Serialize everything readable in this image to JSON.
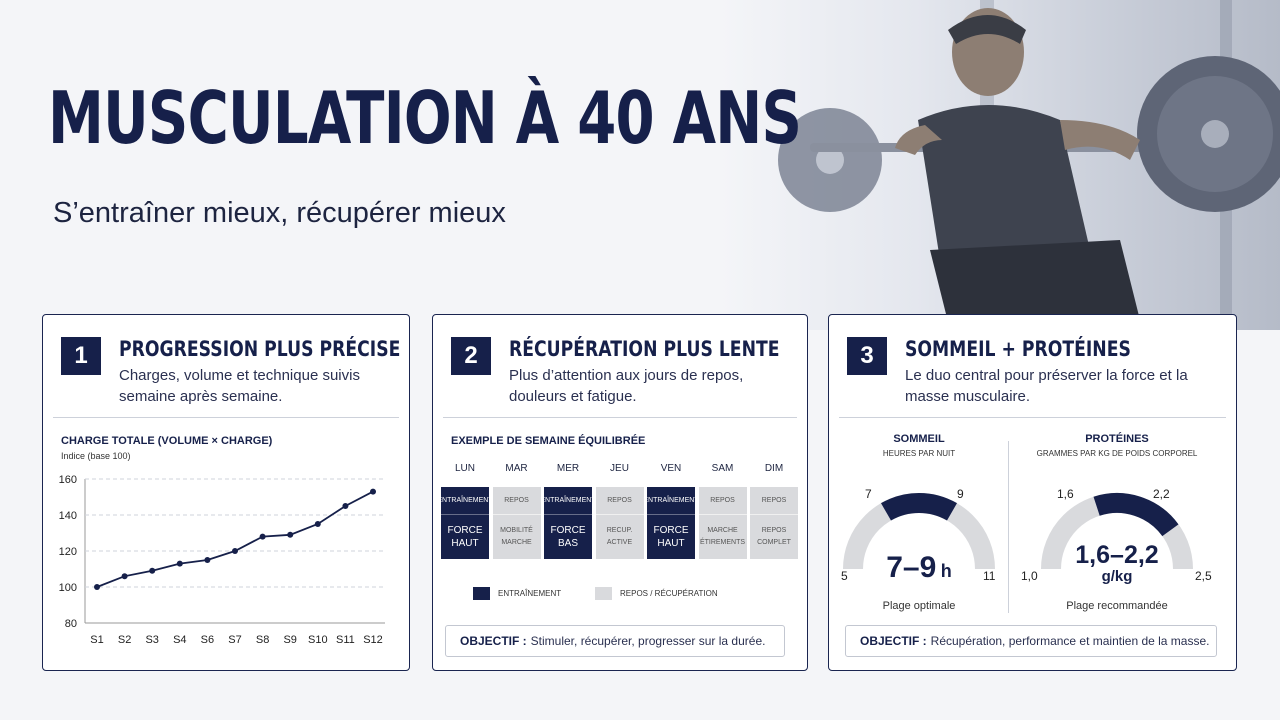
{
  "header": {
    "title": "MUSCULATION À 40 ANS",
    "subtitle": "S’entraîner mieux, récupérer mieux"
  },
  "colors": {
    "navy": "#16204a",
    "rest_grey": "#d9dadd",
    "background": "#f4f5f8"
  },
  "cards": [
    {
      "number": "1",
      "title": "PROGRESSION PLUS PRÉCISE",
      "description": "Charges, volume et technique suivis semaine après semaine.",
      "chart_title": "CHARGE TOTALE (VOLUME × CHARGE)",
      "chart_subtitle": "Indice (base 100)"
    },
    {
      "number": "2",
      "title": "RÉCUPÉRATION PLUS LENTE",
      "description": "Plus d’attention aux jours de repos, douleurs et fatigue.",
      "week_title": "EXEMPLE DE SEMAINE ÉQUILIBRÉE",
      "days": [
        {
          "day": "LUN",
          "top": "ENTRAÎNEMENT",
          "bottom": "FORCE HAUT",
          "type": "train"
        },
        {
          "day": "MAR",
          "top": "REPOS",
          "bottom": "MOBILITÉ MARCHE",
          "type": "rest"
        },
        {
          "day": "MER",
          "top": "ENTRAÎNEMENT",
          "bottom": "FORCE BAS",
          "type": "train"
        },
        {
          "day": "JEU",
          "top": "REPOS",
          "bottom": "RECUP. ACTIVE",
          "type": "rest"
        },
        {
          "day": "VEN",
          "top": "ENTRAÎNEMENT",
          "bottom": "FORCE HAUT",
          "type": "train"
        },
        {
          "day": "SAM",
          "top": "REPOS",
          "bottom": "MARCHE ÉTIREMENTS",
          "type": "rest"
        },
        {
          "day": "DIM",
          "top": "REPOS",
          "bottom": "REPOS COMPLET",
          "type": "rest"
        }
      ],
      "legend_train": "ENTRAÎNEMENT",
      "legend_rest": "REPOS / RÉCUPÉRATION",
      "objective_label": "OBJECTIF :",
      "objective_text": "Stimuler, récupérer, progresser sur la durée."
    },
    {
      "number": "3",
      "title": "SOMMEIL + PROTÉINES",
      "description": "Le duo central pour préserver la force et la masse musculaire.",
      "sleep": {
        "title": "SOMMEIL",
        "subtitle": "HEURES PAR NUIT",
        "min": "5",
        "max": "11",
        "low": "7",
        "high": "9",
        "value": "7–9",
        "unit": "h",
        "caption": "Plage optimale",
        "range_min": 5,
        "range_max": 11,
        "band_low": 7,
        "band_high": 9
      },
      "protein": {
        "title": "PROTÉINES",
        "subtitle": "GRAMMES PAR KG DE POIDS CORPOREL",
        "min": "1,0",
        "max": "2,5",
        "low": "1,6",
        "high": "2,2",
        "value": "1,6–2,2",
        "unit": "g/kg",
        "caption": "Plage recommandée",
        "range_min": 1.0,
        "range_max": 2.5,
        "band_low": 1.6,
        "band_high": 2.2
      },
      "objective_label": "OBJECTIF :",
      "objective_text": "Récupération, performance et maintien de la masse."
    }
  ],
  "chart_data": {
    "type": "line",
    "title": "CHARGE TOTALE (VOLUME × CHARGE)",
    "subtitle": "Indice (base 100)",
    "categories": [
      "S1",
      "S2",
      "S3",
      "S4",
      "S6",
      "S7",
      "S8",
      "S9",
      "S10",
      "S11",
      "S12"
    ],
    "values": [
      100,
      106,
      109,
      113,
      115,
      120,
      128,
      129,
      135,
      145,
      153
    ],
    "yticks": [
      80,
      100,
      120,
      140,
      160
    ],
    "ylim": [
      80,
      160
    ],
    "grid": true
  }
}
